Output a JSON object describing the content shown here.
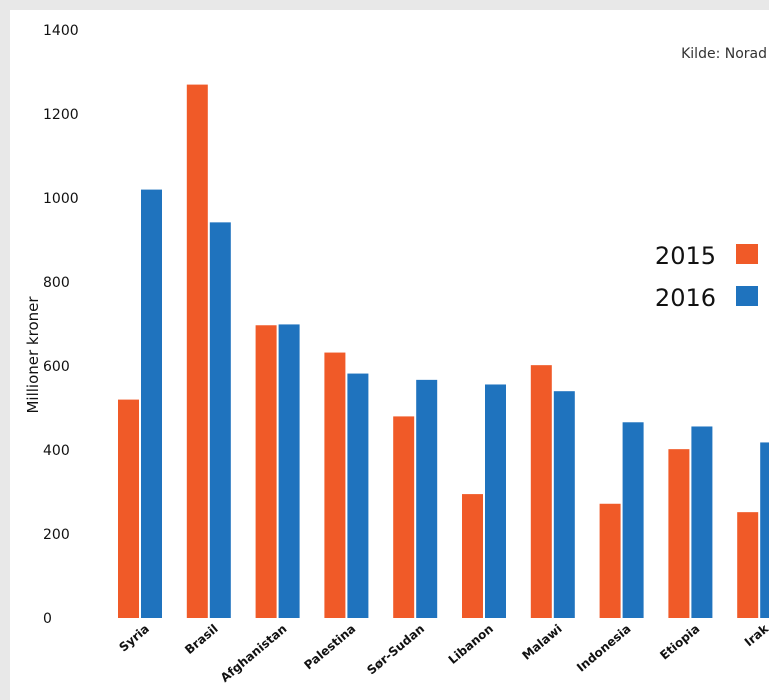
{
  "chart_data": {
    "type": "bar",
    "source": "Kilde: Norad",
    "ylabel": "Millioner kroner",
    "ylim": [
      0,
      1400
    ],
    "yticks": [
      0,
      200,
      400,
      600,
      800,
      1000,
      1200,
      1400
    ],
    "categories": [
      "Syria",
      "Brasil",
      "Afghanistan",
      "Palestina",
      "Sør-Sudan",
      "Libanon",
      "Malawi",
      "Indonesia",
      "Etiopia",
      "Irak"
    ],
    "series": [
      {
        "name": "2015",
        "color": "#f05a28",
        "values": [
          520,
          1270,
          697,
          632,
          480,
          295,
          602,
          272,
          402,
          252
        ]
      },
      {
        "name": "2016",
        "color": "#1f73be",
        "values": [
          1020,
          942,
          699,
          582,
          567,
          556,
          540,
          466,
          456,
          418
        ]
      }
    ],
    "legend_position": "right",
    "grid": false
  }
}
